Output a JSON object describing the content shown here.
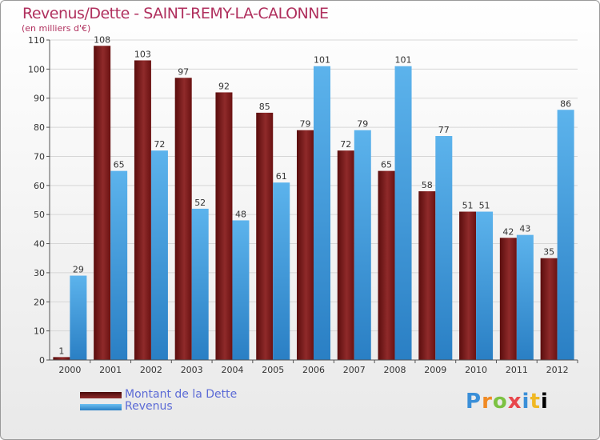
{
  "chart_data": {
    "type": "bar",
    "title": "Revenus/Dette - SAINT-REMY-LA-CALONNE",
    "subtitle": "(en milliers d'€)",
    "categories": [
      "2000",
      "2001",
      "2002",
      "2003",
      "2004",
      "2005",
      "2006",
      "2007",
      "2008",
      "2009",
      "2010",
      "2011",
      "2012"
    ],
    "series": [
      {
        "name": "Montant de la Dette",
        "color": "#8b1a1a",
        "values": [
          1,
          108,
          103,
          97,
          92,
          85,
          79,
          72,
          65,
          58,
          51,
          42,
          35
        ]
      },
      {
        "name": "Revenus",
        "color": "#4aa3e0",
        "values": [
          29,
          65,
          72,
          52,
          48,
          61,
          101,
          79,
          101,
          77,
          51,
          43,
          86
        ]
      }
    ],
    "ylim": [
      0,
      110
    ],
    "yticks": [
      0,
      10,
      20,
      30,
      40,
      50,
      60,
      70,
      80,
      90,
      100,
      110
    ],
    "grid": true,
    "legend_position": "bottom-left"
  },
  "logo_letters": [
    "P",
    "r",
    "o",
    "x",
    "i",
    "t",
    "i"
  ]
}
